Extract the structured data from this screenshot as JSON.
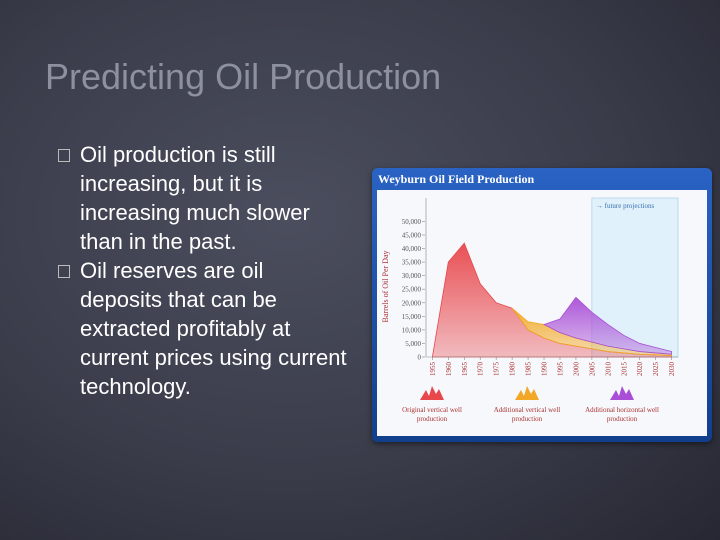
{
  "slide": {
    "title": "Predicting Oil Production",
    "bullets": [
      "Oil production is still increasing, but it is increasing much slower than in the past.",
      "Oil reserves are oil deposits that can be extracted profitably at current prices using current technology."
    ]
  },
  "chart_data": {
    "type": "stacked-area",
    "title": "Weyburn Oil Field Production",
    "y_label": "Barrels of Oil Per Day",
    "annotation": "→ future projections",
    "projection_from": 2005,
    "x": [
      1955,
      1960,
      1965,
      1970,
      1975,
      1980,
      1985,
      1990,
      1995,
      2000,
      2005,
      2010,
      2015,
      2020,
      2025,
      2030
    ],
    "series": [
      {
        "name": "Original vertical well production",
        "color": "#e8474c",
        "values": [
          0,
          35000,
          42000,
          27000,
          20000,
          18000,
          10000,
          7000,
          5000,
          4000,
          3000,
          2000,
          1500,
          1000,
          800,
          500
        ]
      },
      {
        "name": "Additional vertical well production",
        "color": "#f2a826",
        "values": [
          null,
          null,
          null,
          null,
          null,
          0,
          3000,
          5000,
          4000,
          3000,
          2500,
          2000,
          1500,
          1000,
          700,
          500
        ]
      },
      {
        "name": "Additional horizontal well production",
        "color": "#a94fd6",
        "values": [
          null,
          null,
          null,
          null,
          null,
          null,
          null,
          0,
          5000,
          15000,
          11000,
          8000,
          5000,
          3000,
          2000,
          1000
        ]
      }
    ],
    "xlim": [
      1953,
      2032
    ],
    "xticks": [
      1955,
      1960,
      1965,
      1970,
      1975,
      1980,
      1985,
      1990,
      1995,
      2000,
      2005,
      2010,
      2015,
      2020,
      2025,
      2030
    ],
    "ylim": [
      0,
      52000
    ],
    "yticks": [
      {
        "value": 0,
        "label": "0"
      },
      {
        "value": 5000,
        "label": "5,000"
      },
      {
        "value": 10000,
        "label": "10,000"
      },
      {
        "value": 15000,
        "label": "15,000"
      },
      {
        "value": 20000,
        "label": "20,000"
      },
      {
        "value": 25000,
        "label": "25,000"
      },
      {
        "value": 30000,
        "label": "30,000"
      },
      {
        "value": 35000,
        "label": "35,000"
      },
      {
        "value": 40000,
        "label": "40,000"
      },
      {
        "value": 45000,
        "label": "45,000"
      },
      {
        "value": 50000,
        "label": "50,000"
      }
    ]
  }
}
